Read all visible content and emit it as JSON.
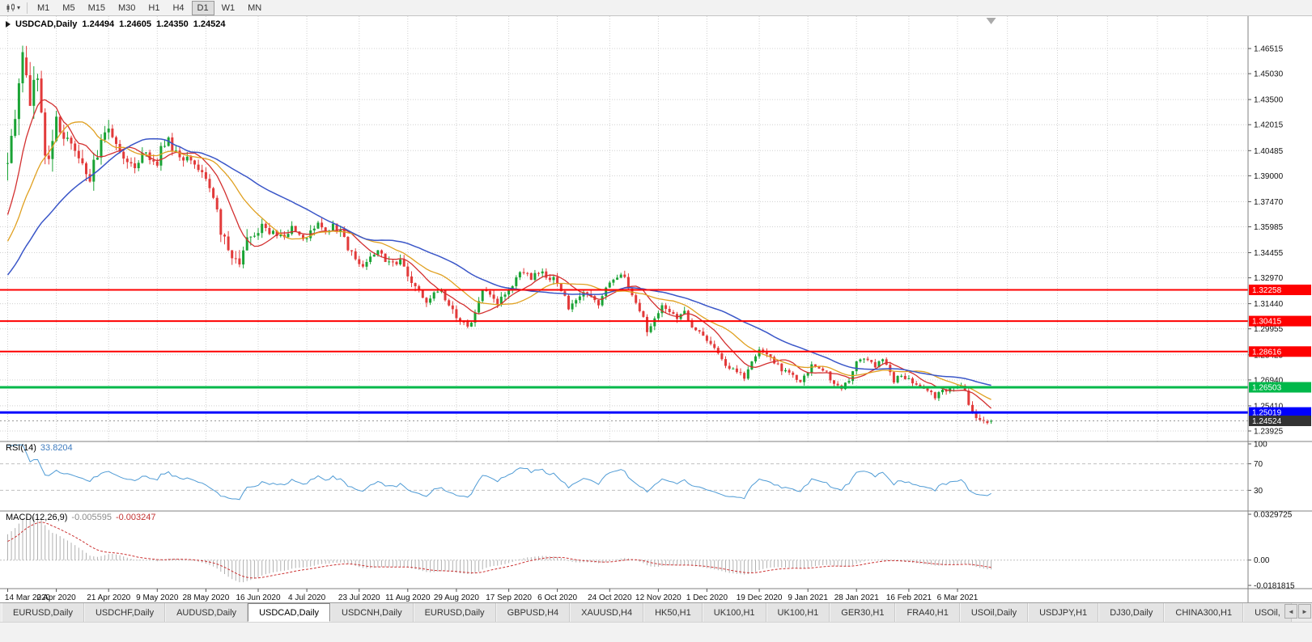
{
  "colors": {
    "up": "#1aa335",
    "down": "#e23a3a",
    "ma_fast": "#d32f2f",
    "ma_mid": "#e0a020",
    "ma_slow": "#3a56c8",
    "hline_red": "#fe0000",
    "hline_green": "#00b84a",
    "hline_blue": "#0000fe",
    "rsi_line": "#4f9bd5",
    "macd_hist": "#b0b0b0",
    "macd_signal": "#cc3333",
    "grid": "#d0d0d0",
    "last_tag_bg": "#333333"
  },
  "toolbar": {
    "caret": "▾",
    "timeframes": [
      {
        "label": "M1"
      },
      {
        "label": "M5"
      },
      {
        "label": "M15"
      },
      {
        "label": "M30"
      },
      {
        "label": "H1"
      },
      {
        "label": "H4"
      },
      {
        "label": "D1",
        "active": true
      },
      {
        "label": "W1"
      },
      {
        "label": "MN"
      }
    ]
  },
  "chart": {
    "symbol": "USDCAD,Daily",
    "ohlc": {
      "open": "1.24494",
      "high": "1.24605",
      "low": "1.24350",
      "close": "1.24524"
    },
    "price_axis": [
      "1.46515",
      "1.45030",
      "1.43500",
      "1.42015",
      "1.40485",
      "1.39000",
      "1.37470",
      "1.35985",
      "1.34455",
      "1.32970",
      "1.31440",
      "1.29955",
      "1.28425",
      "1.26940",
      "1.25410",
      "1.23925"
    ],
    "hlines": [
      {
        "price": 1.32258,
        "label": "1.32258",
        "color": "red"
      },
      {
        "price": 1.30415,
        "label": "1.30415",
        "color": "red"
      },
      {
        "price": 1.28616,
        "label": "1.28616",
        "color": "red"
      },
      {
        "price": 1.26503,
        "label": "1.26503",
        "color": "green"
      },
      {
        "price": 1.25019,
        "label": "1.25019",
        "color": "blue"
      },
      {
        "price": 1.24524,
        "label": "1.24524",
        "color": "last"
      }
    ],
    "dates": [
      {
        "label": "14 Mar 2020",
        "bar": 0
      },
      {
        "label": "2 Apr 2020",
        "bar": 13
      },
      {
        "label": "21 Apr 2020",
        "bar": 27
      },
      {
        "label": "9 May 2020",
        "bar": 40
      },
      {
        "label": "28 May 2020",
        "bar": 53
      },
      {
        "label": "16 Jun 2020",
        "bar": 67
      },
      {
        "label": "4 Jul 2020",
        "bar": 80
      },
      {
        "label": "23 Jul 2020",
        "bar": 94
      },
      {
        "label": "11 Aug 2020",
        "bar": 107
      },
      {
        "label": "29 Aug 2020",
        "bar": 120
      },
      {
        "label": "17 Sep 2020",
        "bar": 134
      },
      {
        "label": "6 Oct 2020",
        "bar": 147
      },
      {
        "label": "24 Oct 2020",
        "bar": 161
      },
      {
        "label": "12 Nov 2020",
        "bar": 174
      },
      {
        "label": "1 Dec 2020",
        "bar": 187
      },
      {
        "label": "19 Dec 2020",
        "bar": 201
      },
      {
        "label": "9 Jan 2021",
        "bar": 214
      },
      {
        "label": "28 Jan 2021",
        "bar": 227
      },
      {
        "label": "16 Feb 2021",
        "bar": 241
      },
      {
        "label": "6 Mar 2021",
        "bar": 254
      }
    ],
    "shift_bar": 263,
    "price_path": [
      [
        -60,
        1.306
      ],
      [
        -50,
        1.2985
      ],
      [
        -42,
        1.2975
      ],
      [
        -30,
        1.306
      ],
      [
        -22,
        1.328
      ],
      [
        -12,
        1.339
      ],
      [
        -7,
        1.343
      ],
      [
        -4,
        1.365
      ],
      [
        -2,
        1.392
      ],
      [
        -1,
        1.397
      ],
      [
        0,
        1.398
      ],
      [
        1,
        1.418
      ],
      [
        2,
        1.428
      ],
      [
        3,
        1.451
      ],
      [
        4,
        1.463
      ],
      [
        5,
        1.446
      ],
      [
        6,
        1.425
      ],
      [
        7,
        1.442
      ],
      [
        8,
        1.444
      ],
      [
        9,
        1.425
      ],
      [
        10,
        1.4
      ],
      [
        11,
        1.399
      ],
      [
        12,
        1.412
      ],
      [
        13,
        1.42
      ],
      [
        14,
        1.415
      ],
      [
        16,
        1.409
      ],
      [
        18,
        1.403
      ],
      [
        20,
        1.396
      ],
      [
        22,
        1.389
      ],
      [
        24,
        1.403
      ],
      [
        26,
        1.413
      ],
      [
        27,
        1.42
      ],
      [
        29,
        1.409
      ],
      [
        31,
        1.402
      ],
      [
        33,
        1.395
      ],
      [
        34,
        1.394
      ],
      [
        36,
        1.406
      ],
      [
        38,
        1.399
      ],
      [
        40,
        1.397
      ],
      [
        41,
        1.408
      ],
      [
        43,
        1.411
      ],
      [
        45,
        1.403
      ],
      [
        47,
        1.398
      ],
      [
        49,
        1.4
      ],
      [
        50,
        1.399
      ],
      [
        52,
        1.39
      ],
      [
        54,
        1.384
      ],
      [
        55,
        1.378
      ],
      [
        57,
        1.357
      ],
      [
        59,
        1.348
      ],
      [
        60,
        1.342
      ],
      [
        62,
        1.339
      ],
      [
        64,
        1.356
      ],
      [
        66,
        1.354
      ],
      [
        68,
        1.362
      ],
      [
        70,
        1.355
      ],
      [
        72,
        1.356
      ],
      [
        74,
        1.352
      ],
      [
        76,
        1.36
      ],
      [
        77,
        1.358
      ],
      [
        79,
        1.353
      ],
      [
        81,
        1.356
      ],
      [
        83,
        1.361
      ],
      [
        85,
        1.357
      ],
      [
        87,
        1.362
      ],
      [
        89,
        1.356
      ],
      [
        91,
        1.348
      ],
      [
        93,
        1.341
      ],
      [
        95,
        1.337
      ],
      [
        97,
        1.343
      ],
      [
        99,
        1.345
      ],
      [
        101,
        1.341
      ],
      [
        103,
        1.338
      ],
      [
        105,
        1.339
      ],
      [
        107,
        1.33
      ],
      [
        108,
        1.325
      ],
      [
        110,
        1.322
      ],
      [
        112,
        1.316
      ],
      [
        114,
        1.32
      ],
      [
        116,
        1.323
      ],
      [
        118,
        1.313
      ],
      [
        120,
        1.306
      ],
      [
        122,
        1.303
      ],
      [
        123,
        1.2995
      ],
      [
        125,
        1.309
      ],
      [
        127,
        1.324
      ],
      [
        129,
        1.318
      ],
      [
        131,
        1.315
      ],
      [
        133,
        1.32
      ],
      [
        135,
        1.326
      ],
      [
        136,
        1.331
      ],
      [
        138,
        1.334
      ],
      [
        140,
        1.33
      ],
      [
        142,
        1.333
      ],
      [
        143,
        1.332
      ],
      [
        145,
        1.33
      ],
      [
        147,
        1.328
      ],
      [
        149,
        1.318
      ],
      [
        150,
        1.312
      ],
      [
        152,
        1.315
      ],
      [
        154,
        1.321
      ],
      [
        156,
        1.318
      ],
      [
        158,
        1.314
      ],
      [
        160,
        1.323
      ],
      [
        162,
        1.328
      ],
      [
        164,
        1.333
      ],
      [
        166,
        1.325
      ],
      [
        168,
        1.314
      ],
      [
        170,
        1.306
      ],
      [
        171,
        1.298
      ],
      [
        173,
        1.306
      ],
      [
        175,
        1.314
      ],
      [
        177,
        1.31
      ],
      [
        179,
        1.307
      ],
      [
        181,
        1.309
      ],
      [
        183,
        1.301
      ],
      [
        185,
        1.297
      ],
      [
        187,
        1.293
      ],
      [
        189,
        1.287
      ],
      [
        191,
        1.281
      ],
      [
        193,
        1.277
      ],
      [
        195,
        1.274
      ],
      [
        197,
        1.27
      ],
      [
        199,
        1.279
      ],
      [
        201,
        1.288
      ],
      [
        203,
        1.284
      ],
      [
        205,
        1.279
      ],
      [
        207,
        1.276
      ],
      [
        209,
        1.273
      ],
      [
        211,
        1.27
      ],
      [
        212,
        1.269
      ],
      [
        214,
        1.274
      ],
      [
        215,
        1.278
      ],
      [
        217,
        1.276
      ],
      [
        219,
        1.273
      ],
      [
        221,
        1.268
      ],
      [
        223,
        1.263
      ],
      [
        225,
        1.27
      ],
      [
        227,
        1.28
      ],
      [
        229,
        1.283
      ],
      [
        231,
        1.279
      ],
      [
        232,
        1.278
      ],
      [
        234,
        1.281
      ],
      [
        236,
        1.274
      ],
      [
        237,
        1.269
      ],
      [
        239,
        1.272
      ],
      [
        241,
        1.27
      ],
      [
        243,
        1.267
      ],
      [
        245,
        1.264
      ],
      [
        247,
        1.261
      ],
      [
        248,
        1.26
      ],
      [
        250,
        1.265
      ],
      [
        251,
        1.263
      ],
      [
        253,
        1.264
      ],
      [
        255,
        1.265
      ],
      [
        256,
        1.262
      ],
      [
        257,
        1.256
      ],
      [
        258,
        1.251
      ],
      [
        259,
        1.2475
      ],
      [
        260,
        1.246
      ],
      [
        261,
        1.2455
      ],
      [
        262,
        1.244
      ],
      [
        263,
        1.2452
      ]
    ]
  },
  "rsi": {
    "name": "RSI(14)",
    "value": "33.8204",
    "levels": [
      70,
      30
    ],
    "axis_labels": [
      "100",
      "70",
      "30"
    ]
  },
  "macd": {
    "name": "MACD(12,26,9)",
    "values": [
      "-0.005595",
      "-0.003247"
    ],
    "axis_labels": [
      "0.0329725",
      "0.00",
      "-0.0181815"
    ]
  },
  "tabs": {
    "scroll_left": "◄",
    "scroll_right": "►",
    "items": [
      {
        "label": "EURUSD,Daily"
      },
      {
        "label": "USDCHF,Daily"
      },
      {
        "label": "AUDUSD,Daily"
      },
      {
        "label": "USDCAD,Daily",
        "active": true
      },
      {
        "label": "USDCNH,Daily"
      },
      {
        "label": "EURUSD,Daily"
      },
      {
        "label": "GBPUSD,H4"
      },
      {
        "label": "XAUUSD,H4"
      },
      {
        "label": "HK50,H1"
      },
      {
        "label": "UK100,H1"
      },
      {
        "label": "UK100,H1"
      },
      {
        "label": "GER30,H1"
      },
      {
        "label": "FRA40,H1"
      },
      {
        "label": "USOil,Daily"
      },
      {
        "label": "USDJPY,H1"
      },
      {
        "label": "DJ30,Daily"
      },
      {
        "label": "CHINA300,H1"
      },
      {
        "label": "USOil,"
      }
    ]
  }
}
